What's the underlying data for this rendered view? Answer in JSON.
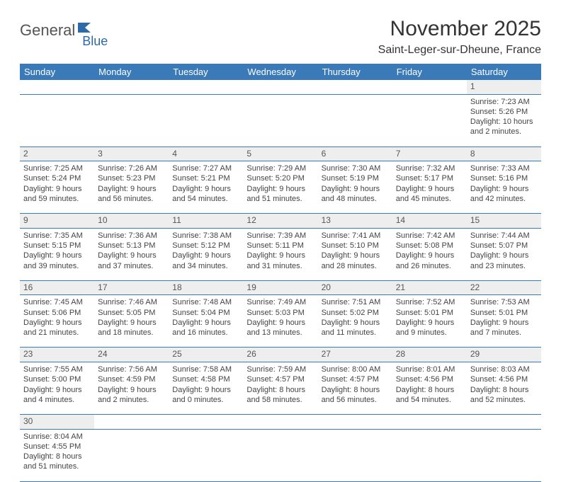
{
  "logo": {
    "part1": "General",
    "part2": "Blue"
  },
  "title": "November 2025",
  "location": "Saint-Leger-sur-Dheune, France",
  "colors": {
    "header_bg": "#3a7ab8",
    "header_text": "#ffffff",
    "daynum_bg": "#eeeeee",
    "row_border": "#3a7ab8",
    "logo_blue": "#2f6aa8",
    "logo_gray": "#555555",
    "body_text": "#333333"
  },
  "day_headers": [
    "Sunday",
    "Monday",
    "Tuesday",
    "Wednesday",
    "Thursday",
    "Friday",
    "Saturday"
  ],
  "weeks": [
    {
      "nums": [
        "",
        "",
        "",
        "",
        "",
        "",
        "1"
      ],
      "cells": [
        null,
        null,
        null,
        null,
        null,
        null,
        {
          "sunrise": "Sunrise: 7:23 AM",
          "sunset": "Sunset: 5:26 PM",
          "daylight": "Daylight: 10 hours and 2 minutes."
        }
      ]
    },
    {
      "nums": [
        "2",
        "3",
        "4",
        "5",
        "6",
        "7",
        "8"
      ],
      "cells": [
        {
          "sunrise": "Sunrise: 7:25 AM",
          "sunset": "Sunset: 5:24 PM",
          "daylight": "Daylight: 9 hours and 59 minutes."
        },
        {
          "sunrise": "Sunrise: 7:26 AM",
          "sunset": "Sunset: 5:23 PM",
          "daylight": "Daylight: 9 hours and 56 minutes."
        },
        {
          "sunrise": "Sunrise: 7:27 AM",
          "sunset": "Sunset: 5:21 PM",
          "daylight": "Daylight: 9 hours and 54 minutes."
        },
        {
          "sunrise": "Sunrise: 7:29 AM",
          "sunset": "Sunset: 5:20 PM",
          "daylight": "Daylight: 9 hours and 51 minutes."
        },
        {
          "sunrise": "Sunrise: 7:30 AM",
          "sunset": "Sunset: 5:19 PM",
          "daylight": "Daylight: 9 hours and 48 minutes."
        },
        {
          "sunrise": "Sunrise: 7:32 AM",
          "sunset": "Sunset: 5:17 PM",
          "daylight": "Daylight: 9 hours and 45 minutes."
        },
        {
          "sunrise": "Sunrise: 7:33 AM",
          "sunset": "Sunset: 5:16 PM",
          "daylight": "Daylight: 9 hours and 42 minutes."
        }
      ]
    },
    {
      "nums": [
        "9",
        "10",
        "11",
        "12",
        "13",
        "14",
        "15"
      ],
      "cells": [
        {
          "sunrise": "Sunrise: 7:35 AM",
          "sunset": "Sunset: 5:15 PM",
          "daylight": "Daylight: 9 hours and 39 minutes."
        },
        {
          "sunrise": "Sunrise: 7:36 AM",
          "sunset": "Sunset: 5:13 PM",
          "daylight": "Daylight: 9 hours and 37 minutes."
        },
        {
          "sunrise": "Sunrise: 7:38 AM",
          "sunset": "Sunset: 5:12 PM",
          "daylight": "Daylight: 9 hours and 34 minutes."
        },
        {
          "sunrise": "Sunrise: 7:39 AM",
          "sunset": "Sunset: 5:11 PM",
          "daylight": "Daylight: 9 hours and 31 minutes."
        },
        {
          "sunrise": "Sunrise: 7:41 AM",
          "sunset": "Sunset: 5:10 PM",
          "daylight": "Daylight: 9 hours and 28 minutes."
        },
        {
          "sunrise": "Sunrise: 7:42 AM",
          "sunset": "Sunset: 5:08 PM",
          "daylight": "Daylight: 9 hours and 26 minutes."
        },
        {
          "sunrise": "Sunrise: 7:44 AM",
          "sunset": "Sunset: 5:07 PM",
          "daylight": "Daylight: 9 hours and 23 minutes."
        }
      ]
    },
    {
      "nums": [
        "16",
        "17",
        "18",
        "19",
        "20",
        "21",
        "22"
      ],
      "cells": [
        {
          "sunrise": "Sunrise: 7:45 AM",
          "sunset": "Sunset: 5:06 PM",
          "daylight": "Daylight: 9 hours and 21 minutes."
        },
        {
          "sunrise": "Sunrise: 7:46 AM",
          "sunset": "Sunset: 5:05 PM",
          "daylight": "Daylight: 9 hours and 18 minutes."
        },
        {
          "sunrise": "Sunrise: 7:48 AM",
          "sunset": "Sunset: 5:04 PM",
          "daylight": "Daylight: 9 hours and 16 minutes."
        },
        {
          "sunrise": "Sunrise: 7:49 AM",
          "sunset": "Sunset: 5:03 PM",
          "daylight": "Daylight: 9 hours and 13 minutes."
        },
        {
          "sunrise": "Sunrise: 7:51 AM",
          "sunset": "Sunset: 5:02 PM",
          "daylight": "Daylight: 9 hours and 11 minutes."
        },
        {
          "sunrise": "Sunrise: 7:52 AM",
          "sunset": "Sunset: 5:01 PM",
          "daylight": "Daylight: 9 hours and 9 minutes."
        },
        {
          "sunrise": "Sunrise: 7:53 AM",
          "sunset": "Sunset: 5:01 PM",
          "daylight": "Daylight: 9 hours and 7 minutes."
        }
      ]
    },
    {
      "nums": [
        "23",
        "24",
        "25",
        "26",
        "27",
        "28",
        "29"
      ],
      "cells": [
        {
          "sunrise": "Sunrise: 7:55 AM",
          "sunset": "Sunset: 5:00 PM",
          "daylight": "Daylight: 9 hours and 4 minutes."
        },
        {
          "sunrise": "Sunrise: 7:56 AM",
          "sunset": "Sunset: 4:59 PM",
          "daylight": "Daylight: 9 hours and 2 minutes."
        },
        {
          "sunrise": "Sunrise: 7:58 AM",
          "sunset": "Sunset: 4:58 PM",
          "daylight": "Daylight: 9 hours and 0 minutes."
        },
        {
          "sunrise": "Sunrise: 7:59 AM",
          "sunset": "Sunset: 4:57 PM",
          "daylight": "Daylight: 8 hours and 58 minutes."
        },
        {
          "sunrise": "Sunrise: 8:00 AM",
          "sunset": "Sunset: 4:57 PM",
          "daylight": "Daylight: 8 hours and 56 minutes."
        },
        {
          "sunrise": "Sunrise: 8:01 AM",
          "sunset": "Sunset: 4:56 PM",
          "daylight": "Daylight: 8 hours and 54 minutes."
        },
        {
          "sunrise": "Sunrise: 8:03 AM",
          "sunset": "Sunset: 4:56 PM",
          "daylight": "Daylight: 8 hours and 52 minutes."
        }
      ]
    },
    {
      "nums": [
        "30",
        "",
        "",
        "",
        "",
        "",
        ""
      ],
      "cells": [
        {
          "sunrise": "Sunrise: 8:04 AM",
          "sunset": "Sunset: 4:55 PM",
          "daylight": "Daylight: 8 hours and 51 minutes."
        },
        null,
        null,
        null,
        null,
        null,
        null
      ]
    }
  ]
}
